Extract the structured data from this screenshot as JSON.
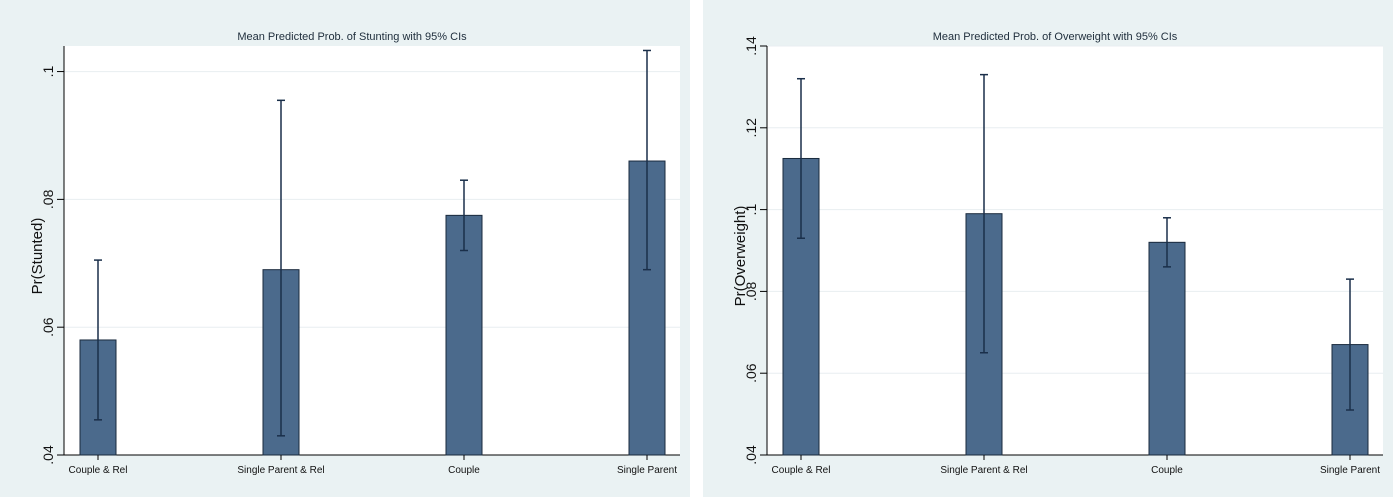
{
  "colors": {
    "outer_bg": "#eaf2f3",
    "plot_bg": "#ffffff",
    "bar_fill": "#4b6a8c",
    "bar_stroke": "#1a2a3d",
    "ci": "#1a2f4a",
    "grid": "#e8eef1"
  },
  "chart_data": [
    {
      "type": "bar",
      "title": "Mean Predicted Prob. of Stunting with 95% CIs",
      "xlabel": "",
      "ylabel": "Pr(Stunted)",
      "categories": [
        "Couple & Rel",
        "Single Parent & Rel",
        "Couple",
        "Single Parent"
      ],
      "values": [
        0.058,
        0.069,
        0.0775,
        0.086
      ],
      "ci_lower": [
        0.0455,
        0.043,
        0.072,
        0.069
      ],
      "ci_upper": [
        0.0705,
        0.0955,
        0.083,
        0.1033
      ],
      "ylim": [
        0.04,
        0.104
      ],
      "yticks": [
        0.04,
        0.06,
        0.08,
        0.1
      ],
      "ytick_labels": [
        ".04",
        ".06",
        ".08",
        ".1"
      ],
      "grid": true
    },
    {
      "type": "bar",
      "title": "Mean Predicted Prob. of Overweight with 95% CIs",
      "xlabel": "",
      "ylabel": "Pr(Overweight)",
      "categories": [
        "Couple & Rel",
        "Single Parent & Rel",
        "Couple",
        "Single Parent"
      ],
      "values": [
        0.1125,
        0.099,
        0.092,
        0.067
      ],
      "ci_lower": [
        0.093,
        0.065,
        0.086,
        0.051
      ],
      "ci_upper": [
        0.132,
        0.133,
        0.098,
        0.083
      ],
      "ylim": [
        0.04,
        0.14
      ],
      "yticks": [
        0.04,
        0.06,
        0.08,
        0.1,
        0.12,
        0.14
      ],
      "ytick_labels": [
        ".04",
        ".06",
        ".08",
        ".1",
        ".12",
        ".14"
      ],
      "grid": true
    }
  ]
}
